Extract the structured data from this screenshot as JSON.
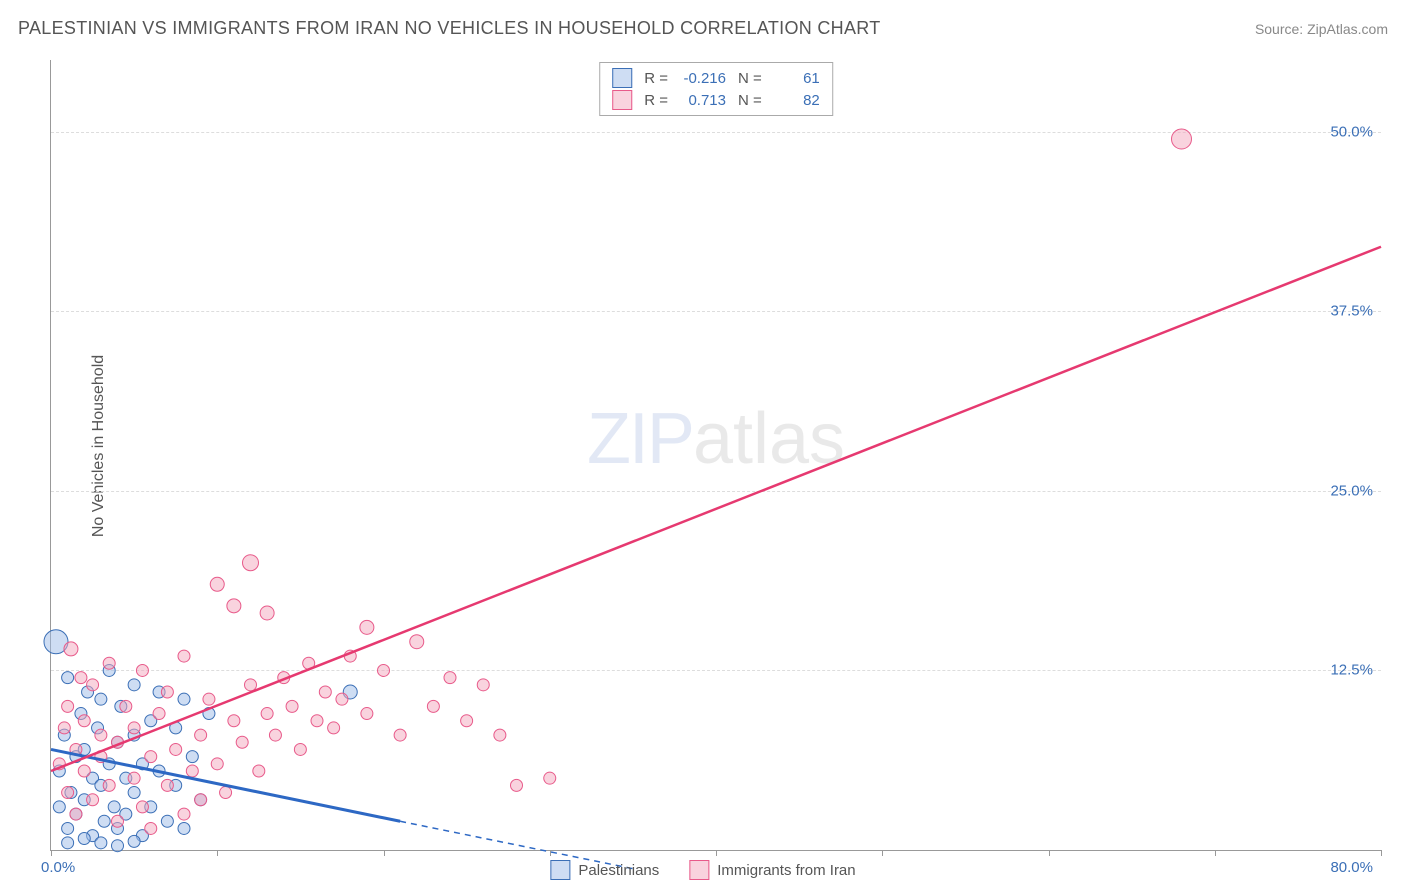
{
  "title": "PALESTINIAN VS IMMIGRANTS FROM IRAN NO VEHICLES IN HOUSEHOLD CORRELATION CHART",
  "source": "Source: ZipAtlas.com",
  "ylabel": "No Vehicles in Household",
  "watermark_zip": "ZIP",
  "watermark_atlas": "atlas",
  "chart": {
    "type": "scatter",
    "xlim": [
      0,
      80
    ],
    "ylim": [
      0,
      55
    ],
    "x_ticks": [
      0,
      10,
      20,
      30,
      40,
      50,
      60,
      70,
      80
    ],
    "y_gridlines": [
      12.5,
      25.0,
      37.5,
      50.0
    ],
    "y_tick_labels": [
      "12.5%",
      "25.0%",
      "37.5%",
      "50.0%"
    ],
    "x_min_label": "0.0%",
    "x_max_label": "80.0%",
    "tick_label_color": "#3b6fb6",
    "grid_color": "#dddddd",
    "axis_color": "#999999",
    "series": [
      {
        "name": "Palestinians",
        "fill_color": "#9dbce8",
        "fill_opacity": 0.5,
        "stroke_color": "#3b6fb6",
        "stroke_width": 1,
        "r_value": "-0.216",
        "n_value": "61",
        "trend_color": "#2d68c4",
        "trend_width": 3,
        "trend_p1": {
          "x": 0,
          "y": 7.0
        },
        "trend_p2": {
          "x": 21,
          "y": 2.0
        },
        "trend_dash_p2": {
          "x": 35,
          "y": -1.3
        },
        "points": [
          {
            "x": 0.3,
            "y": 14.5,
            "r": 12
          },
          {
            "x": 0.5,
            "y": 3.0,
            "r": 6
          },
          {
            "x": 0.5,
            "y": 5.5,
            "r": 6
          },
          {
            "x": 0.8,
            "y": 8.0,
            "r": 6
          },
          {
            "x": 1.0,
            "y": 1.5,
            "r": 6
          },
          {
            "x": 1.0,
            "y": 12.0,
            "r": 6
          },
          {
            "x": 1.2,
            "y": 4.0,
            "r": 6
          },
          {
            "x": 1.5,
            "y": 6.5,
            "r": 6
          },
          {
            "x": 1.5,
            "y": 2.5,
            "r": 6
          },
          {
            "x": 1.8,
            "y": 9.5,
            "r": 6
          },
          {
            "x": 2.0,
            "y": 7.0,
            "r": 6
          },
          {
            "x": 2.0,
            "y": 3.5,
            "r": 6
          },
          {
            "x": 2.2,
            "y": 11.0,
            "r": 6
          },
          {
            "x": 2.5,
            "y": 5.0,
            "r": 6
          },
          {
            "x": 2.5,
            "y": 1.0,
            "r": 6
          },
          {
            "x": 2.8,
            "y": 8.5,
            "r": 6
          },
          {
            "x": 3.0,
            "y": 4.5,
            "r": 6
          },
          {
            "x": 3.0,
            "y": 10.5,
            "r": 6
          },
          {
            "x": 3.2,
            "y": 2.0,
            "r": 6
          },
          {
            "x": 3.5,
            "y": 6.0,
            "r": 6
          },
          {
            "x": 3.5,
            "y": 12.5,
            "r": 6
          },
          {
            "x": 3.8,
            "y": 3.0,
            "r": 6
          },
          {
            "x": 4.0,
            "y": 7.5,
            "r": 6
          },
          {
            "x": 4.0,
            "y": 1.5,
            "r": 6
          },
          {
            "x": 4.2,
            "y": 10.0,
            "r": 6
          },
          {
            "x": 4.5,
            "y": 5.0,
            "r": 6
          },
          {
            "x": 4.5,
            "y": 2.5,
            "r": 6
          },
          {
            "x": 5.0,
            "y": 8.0,
            "r": 6
          },
          {
            "x": 5.0,
            "y": 4.0,
            "r": 6
          },
          {
            "x": 5.0,
            "y": 11.5,
            "r": 6
          },
          {
            "x": 5.5,
            "y": 6.0,
            "r": 6
          },
          {
            "x": 5.5,
            "y": 1.0,
            "r": 6
          },
          {
            "x": 6.0,
            "y": 9.0,
            "r": 6
          },
          {
            "x": 6.0,
            "y": 3.0,
            "r": 6
          },
          {
            "x": 6.5,
            "y": 11.0,
            "r": 6
          },
          {
            "x": 6.5,
            "y": 5.5,
            "r": 6
          },
          {
            "x": 7.0,
            "y": 2.0,
            "r": 6
          },
          {
            "x": 7.5,
            "y": 8.5,
            "r": 6
          },
          {
            "x": 7.5,
            "y": 4.5,
            "r": 6
          },
          {
            "x": 8.0,
            "y": 10.5,
            "r": 6
          },
          {
            "x": 8.0,
            "y": 1.5,
            "r": 6
          },
          {
            "x": 8.5,
            "y": 6.5,
            "r": 6
          },
          {
            "x": 9.0,
            "y": 3.5,
            "r": 6
          },
          {
            "x": 9.5,
            "y": 9.5,
            "r": 6
          },
          {
            "x": 18.0,
            "y": 11.0,
            "r": 7
          },
          {
            "x": 1.0,
            "y": 0.5,
            "r": 6
          },
          {
            "x": 2.0,
            "y": 0.8,
            "r": 6
          },
          {
            "x": 3.0,
            "y": 0.5,
            "r": 6
          },
          {
            "x": 4.0,
            "y": 0.3,
            "r": 6
          },
          {
            "x": 5.0,
            "y": 0.6,
            "r": 6
          }
        ]
      },
      {
        "name": "Immigrants from Iran",
        "fill_color": "#f4a8bd",
        "fill_opacity": 0.5,
        "stroke_color": "#e85a8a",
        "stroke_width": 1,
        "r_value": "0.713",
        "n_value": "82",
        "trend_color": "#e63970",
        "trend_width": 2.5,
        "trend_p1": {
          "x": 0,
          "y": 5.5
        },
        "trend_p2": {
          "x": 80,
          "y": 42.0
        },
        "points": [
          {
            "x": 0.5,
            "y": 6.0,
            "r": 6
          },
          {
            "x": 0.8,
            "y": 8.5,
            "r": 6
          },
          {
            "x": 1.0,
            "y": 4.0,
            "r": 6
          },
          {
            "x": 1.0,
            "y": 10.0,
            "r": 6
          },
          {
            "x": 1.2,
            "y": 14.0,
            "r": 7
          },
          {
            "x": 1.5,
            "y": 7.0,
            "r": 6
          },
          {
            "x": 1.5,
            "y": 2.5,
            "r": 6
          },
          {
            "x": 1.8,
            "y": 12.0,
            "r": 6
          },
          {
            "x": 2.0,
            "y": 5.5,
            "r": 6
          },
          {
            "x": 2.0,
            "y": 9.0,
            "r": 6
          },
          {
            "x": 2.5,
            "y": 3.5,
            "r": 6
          },
          {
            "x": 2.5,
            "y": 11.5,
            "r": 6
          },
          {
            "x": 3.0,
            "y": 6.5,
            "r": 6
          },
          {
            "x": 3.0,
            "y": 8.0,
            "r": 6
          },
          {
            "x": 3.5,
            "y": 4.5,
            "r": 6
          },
          {
            "x": 3.5,
            "y": 13.0,
            "r": 6
          },
          {
            "x": 4.0,
            "y": 7.5,
            "r": 6
          },
          {
            "x": 4.0,
            "y": 2.0,
            "r": 6
          },
          {
            "x": 4.5,
            "y": 10.0,
            "r": 6
          },
          {
            "x": 5.0,
            "y": 5.0,
            "r": 6
          },
          {
            "x": 5.0,
            "y": 8.5,
            "r": 6
          },
          {
            "x": 5.5,
            "y": 3.0,
            "r": 6
          },
          {
            "x": 5.5,
            "y": 12.5,
            "r": 6
          },
          {
            "x": 6.0,
            "y": 6.5,
            "r": 6
          },
          {
            "x": 6.0,
            "y": 1.5,
            "r": 6
          },
          {
            "x": 6.5,
            "y": 9.5,
            "r": 6
          },
          {
            "x": 7.0,
            "y": 4.5,
            "r": 6
          },
          {
            "x": 7.0,
            "y": 11.0,
            "r": 6
          },
          {
            "x": 7.5,
            "y": 7.0,
            "r": 6
          },
          {
            "x": 8.0,
            "y": 2.5,
            "r": 6
          },
          {
            "x": 8.0,
            "y": 13.5,
            "r": 6
          },
          {
            "x": 8.5,
            "y": 5.5,
            "r": 6
          },
          {
            "x": 9.0,
            "y": 8.0,
            "r": 6
          },
          {
            "x": 9.0,
            "y": 3.5,
            "r": 6
          },
          {
            "x": 9.5,
            "y": 10.5,
            "r": 6
          },
          {
            "x": 10.0,
            "y": 6.0,
            "r": 6
          },
          {
            "x": 10.0,
            "y": 18.5,
            "r": 7
          },
          {
            "x": 10.5,
            "y": 4.0,
            "r": 6
          },
          {
            "x": 11.0,
            "y": 9.0,
            "r": 6
          },
          {
            "x": 11.0,
            "y": 17.0,
            "r": 7
          },
          {
            "x": 11.5,
            "y": 7.5,
            "r": 6
          },
          {
            "x": 12.0,
            "y": 11.5,
            "r": 6
          },
          {
            "x": 12.0,
            "y": 20.0,
            "r": 8
          },
          {
            "x": 12.5,
            "y": 5.5,
            "r": 6
          },
          {
            "x": 13.0,
            "y": 9.5,
            "r": 6
          },
          {
            "x": 13.0,
            "y": 16.5,
            "r": 7
          },
          {
            "x": 13.5,
            "y": 8.0,
            "r": 6
          },
          {
            "x": 14.0,
            "y": 12.0,
            "r": 6
          },
          {
            "x": 14.5,
            "y": 10.0,
            "r": 6
          },
          {
            "x": 15.0,
            "y": 7.0,
            "r": 6
          },
          {
            "x": 15.5,
            "y": 13.0,
            "r": 6
          },
          {
            "x": 16.0,
            "y": 9.0,
            "r": 6
          },
          {
            "x": 16.5,
            "y": 11.0,
            "r": 6
          },
          {
            "x": 17.0,
            "y": 8.5,
            "r": 6
          },
          {
            "x": 17.5,
            "y": 10.5,
            "r": 6
          },
          {
            "x": 18.0,
            "y": 13.5,
            "r": 6
          },
          {
            "x": 19.0,
            "y": 15.5,
            "r": 7
          },
          {
            "x": 19.0,
            "y": 9.5,
            "r": 6
          },
          {
            "x": 20.0,
            "y": 12.5,
            "r": 6
          },
          {
            "x": 21.0,
            "y": 8.0,
            "r": 6
          },
          {
            "x": 22.0,
            "y": 14.5,
            "r": 7
          },
          {
            "x": 23.0,
            "y": 10.0,
            "r": 6
          },
          {
            "x": 24.0,
            "y": 12.0,
            "r": 6
          },
          {
            "x": 25.0,
            "y": 9.0,
            "r": 6
          },
          {
            "x": 26.0,
            "y": 11.5,
            "r": 6
          },
          {
            "x": 27.0,
            "y": 8.0,
            "r": 6
          },
          {
            "x": 28.0,
            "y": 4.5,
            "r": 6
          },
          {
            "x": 30.0,
            "y": 5.0,
            "r": 6
          },
          {
            "x": 68.0,
            "y": 49.5,
            "r": 10
          }
        ]
      }
    ]
  },
  "legend": {
    "series1_label": "Palestinians",
    "series2_label": "Immigrants from Iran",
    "r_label": "R =",
    "n_label": "N ="
  }
}
